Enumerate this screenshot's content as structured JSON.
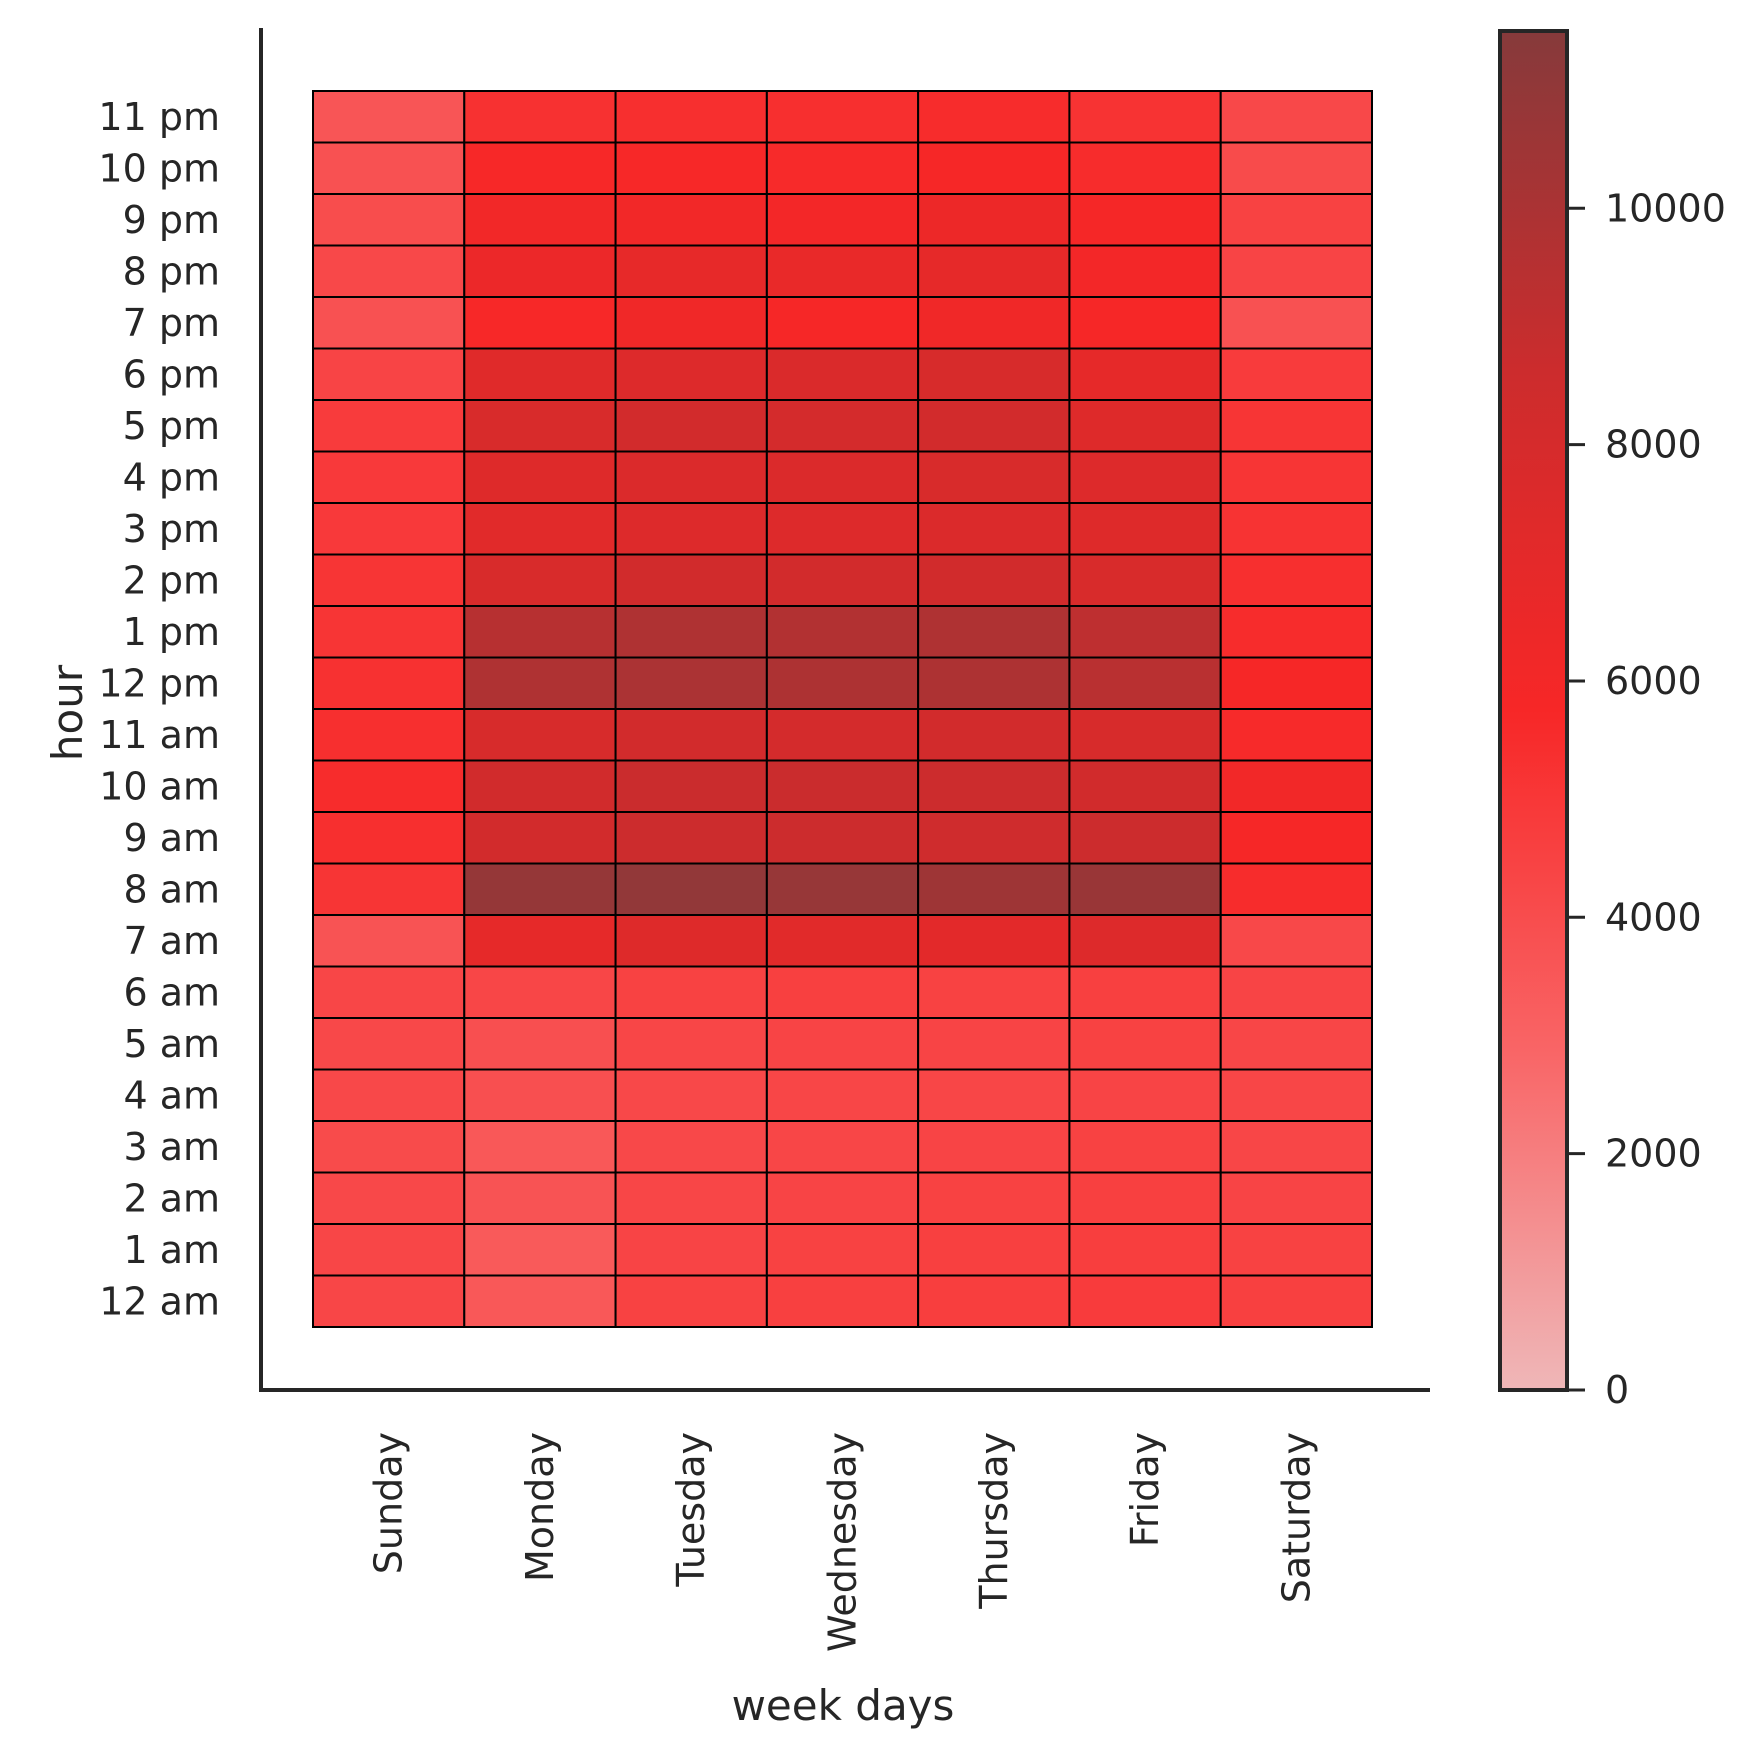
{
  "chart_data": {
    "type": "heatmap",
    "title": "",
    "xlabel": "week days",
    "ylabel": "hour",
    "x_categories": [
      "Sunday",
      "Monday",
      "Tuesday",
      "Wednesday",
      "Thursday",
      "Friday",
      "Saturday"
    ],
    "y_categories": [
      "12 am",
      "1 am",
      "2 am",
      "3 am",
      "4 am",
      "5 am",
      "6 am",
      "7 am",
      "8 am",
      "9 am",
      "10 am",
      "11 am",
      "12 pm",
      "1 pm",
      "2 pm",
      "3 pm",
      "4 pm",
      "5 pm",
      "6 pm",
      "7 pm",
      "8 pm",
      "9 pm",
      "10 pm",
      "11 pm"
    ],
    "values": [
      [
        4300,
        3500,
        4500,
        4600,
        4700,
        4800,
        4600
      ],
      [
        4300,
        3400,
        4400,
        4500,
        4600,
        4700,
        4500
      ],
      [
        4200,
        3700,
        4300,
        4400,
        4500,
        4600,
        4400
      ],
      [
        4100,
        3500,
        4200,
        4300,
        4400,
        4500,
        4300
      ],
      [
        4200,
        3900,
        4200,
        4300,
        4300,
        4400,
        4300
      ],
      [
        4200,
        3900,
        4300,
        4400,
        4400,
        4500,
        4300
      ],
      [
        4300,
        4300,
        4500,
        4600,
        4500,
        4600,
        4400
      ],
      [
        3700,
        6900,
        7400,
        7200,
        7100,
        7500,
        4200
      ],
      [
        5100,
        10900,
        11000,
        10800,
        10500,
        10700,
        5500
      ],
      [
        5400,
        8200,
        8600,
        8600,
        8400,
        8600,
        5800
      ],
      [
        5500,
        8300,
        8700,
        8700,
        8600,
        8300,
        6100
      ],
      [
        5400,
        7900,
        8200,
        8100,
        8200,
        7900,
        5600
      ],
      [
        5300,
        9800,
        10000,
        9900,
        9900,
        9400,
        5800
      ],
      [
        5100,
        9500,
        9800,
        9700,
        9800,
        9200,
        5500
      ],
      [
        5100,
        7800,
        8300,
        8200,
        8300,
        7800,
        5400
      ],
      [
        4900,
        7200,
        7500,
        7500,
        7600,
        7400,
        5200
      ],
      [
        4900,
        7400,
        7600,
        7600,
        7800,
        7500,
        5100
      ],
      [
        4800,
        7800,
        8200,
        8100,
        8200,
        7400,
        5100
      ],
      [
        4400,
        7300,
        7500,
        7700,
        7900,
        6900,
        4800
      ],
      [
        3800,
        5700,
        6200,
        5800,
        6200,
        5800,
        3800
      ],
      [
        4200,
        6500,
        6800,
        6700,
        6900,
        6000,
        4400
      ],
      [
        4000,
        6100,
        6100,
        6000,
        6400,
        5900,
        4500
      ],
      [
        3800,
        5700,
        5700,
        5600,
        5800,
        5500,
        4100
      ],
      [
        3600,
        5300,
        5400,
        5400,
        5500,
        5200,
        4200
      ]
    ],
    "colorbar": {
      "min": 0,
      "max": 11500,
      "ticks": [
        0,
        2000,
        4000,
        6000,
        8000,
        10000
      ],
      "colors": [
        "#efb7b8",
        "#f96566",
        "#f72727",
        "#cc2c2d",
        "#863a3b"
      ]
    },
    "grid": false,
    "cell_edge_color": "#000000"
  }
}
